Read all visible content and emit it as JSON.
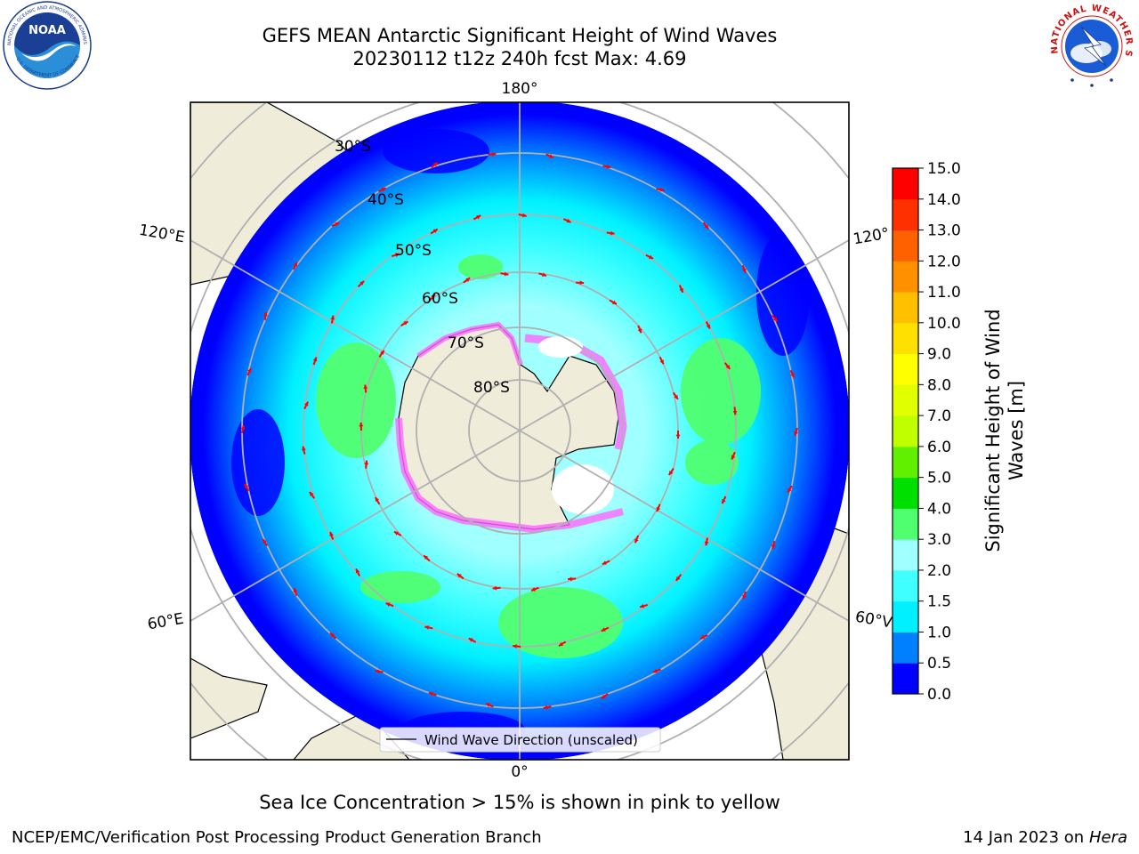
{
  "header": {
    "title_line1": "GEFS MEAN Antarctic Significant Height of Wind Waves",
    "title_line2": "20230112 t12z 240h fcst   Max: 4.69"
  },
  "logos": {
    "left": {
      "icon": "noaa-logo",
      "text": "NOAA",
      "ring_text": "NATIONAL OCEANIC AND ATMOSPHERIC ADMINISTRATION · U.S. DEPARTMENT OF COMMERCE"
    },
    "right": {
      "icon": "nws-logo",
      "ring_text": "NATIONAL WEATHER SERVICE"
    }
  },
  "map": {
    "projection": "south-polar-stereographic",
    "colors": {
      "land": "#efecd9",
      "ocean_edge": "#0000ff",
      "sea_ice": "#ff66ff",
      "wind_arrow": "#ff0000",
      "gridline": "#b0b0b0"
    },
    "longitude_labels": [
      {
        "id": "lon-180",
        "text": "180°"
      },
      {
        "id": "lon-120e",
        "text": "120°E"
      },
      {
        "id": "lon-120w",
        "text": "120°"
      },
      {
        "id": "lon-60e",
        "text": "60°E"
      },
      {
        "id": "lon-60w",
        "text": "60°V"
      },
      {
        "id": "lon-0",
        "text": "0°"
      }
    ],
    "latitude_labels": [
      "30°S",
      "40°S",
      "50°S",
      "60°S",
      "70°S",
      "80°S"
    ],
    "legend": {
      "label": "Wind Wave Direction (unscaled)"
    }
  },
  "colorbar": {
    "label": "Significant Height of Wind Waves [m]",
    "label_line1": "Significant Height of Wind",
    "label_line2": "Waves [m]",
    "ticks": [
      "15.0",
      "14.0",
      "13.0",
      "12.0",
      "11.0",
      "10.0",
      "9.0",
      "8.0",
      "7.0",
      "6.0",
      "5.0",
      "4.0",
      "3.0",
      "2.0",
      "1.5",
      "1.0",
      "0.5",
      "0.0"
    ],
    "levels": [
      0.0,
      0.5,
      1.0,
      1.5,
      2.0,
      3.0,
      4.0,
      5.0,
      6.0,
      7.0,
      8.0,
      9.0,
      10.0,
      11.0,
      12.0,
      13.0,
      14.0,
      15.0
    ],
    "colors_bottom_to_top": [
      "#0000ff",
      "#0080ff",
      "#00f0ff",
      "#40ffff",
      "#a0ffff",
      "#50ff70",
      "#00e000",
      "#60f000",
      "#c0ff00",
      "#e0ff00",
      "#ffff00",
      "#ffe000",
      "#ffc000",
      "#ff9000",
      "#ff6000",
      "#ff3000",
      "#ff0000"
    ]
  },
  "ice_note": "Sea Ice Concentration > 15% is shown in pink to yellow",
  "footer": {
    "left": "NCEP/EMC/Verification Post Processing Product Generation Branch",
    "right_prefix": "14 Jan 2023 on ",
    "right_host": "Hera"
  }
}
